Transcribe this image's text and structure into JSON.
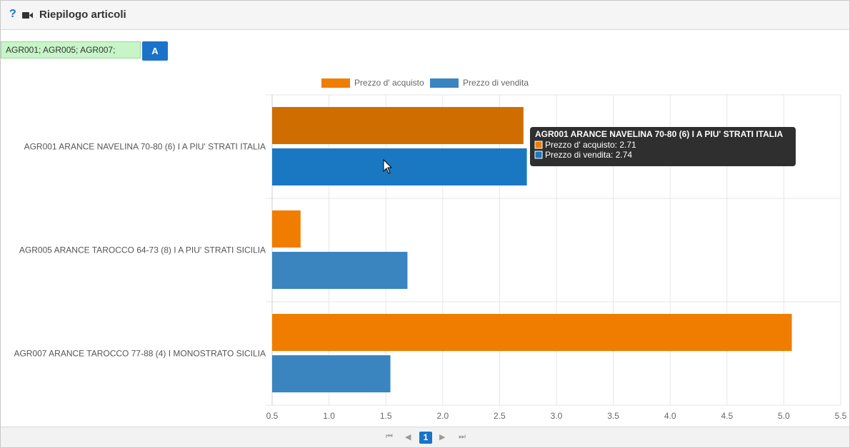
{
  "header": {
    "help_icon": "?",
    "title": "Riepilogo articoli"
  },
  "filter": {
    "value": "AGR001; AGR005; AGR007;",
    "button_label": "A"
  },
  "pagination": {
    "current_page": "1"
  },
  "colors": {
    "accent": "#1a73c8",
    "purchase": "#f07d00",
    "sale": "#3a85c0"
  },
  "chart_data": {
    "type": "bar",
    "orientation": "horizontal",
    "categories": [
      "AGR001 ARANCE NAVELINA 70-80 (6) I A PIU' STRATI     ITALIA",
      "AGR005 ARANCE TAROCCO 64-73 (8) I A PIU' STRATI     SICILIA",
      "AGR007 ARANCE TAROCCO 77-88 (4) I MONOSTRATO     SICILIA"
    ],
    "series": [
      {
        "name": "Prezzo d' acquisto",
        "values": [
          2.71,
          0.75,
          5.07
        ],
        "color": "#f07d00"
      },
      {
        "name": "Prezzo di vendita",
        "values": [
          2.74,
          1.69,
          1.54
        ],
        "color": "#3a85c0"
      }
    ],
    "xlim": [
      0.5,
      5.5
    ],
    "ticks": [
      "0.5",
      "1.0",
      "1.5",
      "2.0",
      "2.5",
      "3.0",
      "3.5",
      "4.0",
      "4.5",
      "5.0",
      "5.5"
    ],
    "grid": true,
    "legend": "top-center",
    "tooltip": {
      "title": "AGR001 ARANCE NAVELINA 70-80 (6) I A PIU' STRATI     ITALIA",
      "lines": [
        "Prezzo d' acquisto: 2.71",
        "Prezzo di vendita: 2.74"
      ]
    }
  }
}
